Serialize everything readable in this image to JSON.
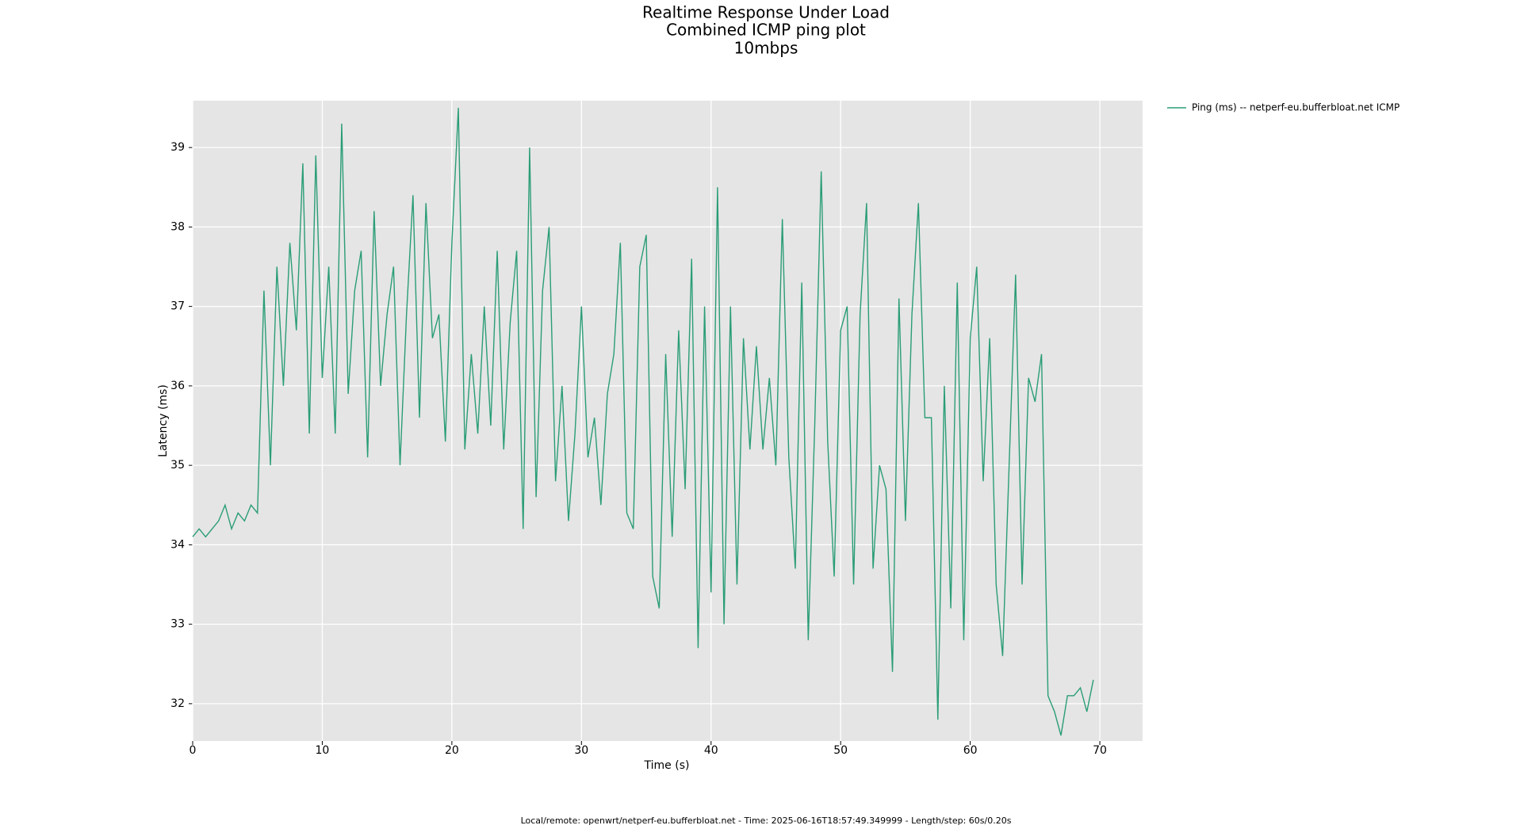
{
  "chart_data": {
    "type": "line",
    "title": [
      "Realtime Response Under Load",
      "Combined ICMP ping plot",
      "10mbps"
    ],
    "xlabel": "Time (s)",
    "ylabel": "Latency (ms)",
    "footer": "Local/remote: openwrt/netperf-eu.bufferbloat.net - Time: 2025-06-16T18:57:49.349999 - Length/step: 60s/0.20s",
    "xlim": [
      0,
      73.3
    ],
    "ylim": [
      31.53,
      39.59
    ],
    "xticks": [
      0,
      10,
      20,
      30,
      40,
      50,
      60,
      70
    ],
    "yticks": [
      32,
      33,
      34,
      35,
      36,
      37,
      38,
      39
    ],
    "grid": true,
    "legend": "outside-upper-right",
    "x": [
      0,
      0.5,
      1,
      1.5,
      2,
      2.5,
      3,
      3.5,
      4,
      4.5,
      5,
      5.5,
      6,
      6.5,
      7,
      7.5,
      8,
      8.5,
      9,
      9.5,
      10,
      10.5,
      11,
      11.5,
      12,
      12.5,
      13,
      13.5,
      14,
      14.5,
      15,
      15.5,
      16,
      16.5,
      17,
      17.5,
      18,
      18.5,
      19,
      19.5,
      20,
      20.5,
      21,
      21.5,
      22,
      22.5,
      23,
      23.5,
      24,
      24.5,
      25,
      25.5,
      26,
      26.5,
      27,
      27.5,
      28,
      28.5,
      29,
      29.5,
      30,
      30.5,
      31,
      31.5,
      32,
      32.5,
      33,
      33.5,
      34,
      34.5,
      35,
      35.5,
      36,
      36.5,
      37,
      37.5,
      38,
      38.5,
      39,
      39.5,
      40,
      40.5,
      41,
      41.5,
      42,
      42.5,
      43,
      43.5,
      44,
      44.5,
      45,
      45.5,
      46,
      46.5,
      47,
      47.5,
      48,
      48.5,
      49,
      49.5,
      50,
      50.5,
      51,
      51.5,
      52,
      52.5,
      53,
      53.5,
      54,
      54.5,
      55,
      55.5,
      56,
      56.5,
      57,
      57.5,
      58,
      58.5,
      59,
      59.5,
      60,
      60.5,
      61,
      61.5,
      62,
      62.5,
      63,
      63.5,
      64,
      64.5,
      65,
      65.5,
      66,
      66.5,
      67,
      67.5,
      68,
      68.5,
      69,
      69.5
    ],
    "series": [
      {
        "name": "Ping (ms) -- netperf-eu.bufferbloat.net ICMP",
        "color": "#2a9d75",
        "values": [
          34.1,
          34.2,
          34.1,
          34.2,
          34.3,
          34.5,
          34.2,
          34.4,
          34.3,
          34.5,
          34.4,
          37.2,
          35.0,
          37.5,
          36.0,
          37.8,
          36.7,
          38.8,
          35.4,
          38.9,
          36.1,
          37.5,
          35.4,
          39.3,
          35.9,
          37.2,
          37.7,
          35.1,
          38.2,
          36.0,
          36.9,
          37.5,
          35.0,
          36.9,
          38.4,
          35.6,
          38.3,
          36.6,
          36.9,
          35.3,
          37.8,
          39.5,
          35.2,
          36.4,
          35.4,
          37.0,
          35.5,
          37.7,
          35.2,
          36.8,
          37.7,
          34.2,
          39.0,
          34.6,
          37.2,
          38.0,
          34.8,
          36.0,
          34.3,
          35.4,
          37.0,
          35.1,
          35.6,
          34.5,
          35.9,
          36.4,
          37.8,
          34.4,
          34.2,
          37.5,
          37.9,
          33.6,
          33.2,
          36.4,
          34.1,
          36.7,
          34.7,
          37.6,
          32.7,
          37.0,
          33.4,
          38.5,
          33.0,
          37.0,
          33.5,
          36.6,
          35.2,
          36.5,
          35.2,
          36.1,
          35.0,
          38.1,
          35.1,
          33.7,
          37.3,
          32.8,
          35.5,
          38.7,
          35.3,
          33.6,
          36.7,
          37.0,
          33.5,
          36.9,
          38.3,
          33.7,
          35.0,
          34.7,
          32.4,
          37.1,
          34.3,
          36.9,
          38.3,
          35.6,
          35.6,
          31.8,
          36.0,
          33.2,
          37.3,
          32.8,
          36.6,
          37.5,
          34.8,
          36.6,
          33.5,
          32.6,
          35.0,
          37.4,
          33.5,
          36.1,
          35.8,
          36.4,
          32.1,
          31.9,
          31.6,
          32.1,
          32.1,
          32.2,
          31.9,
          32.3
        ]
      }
    ]
  }
}
